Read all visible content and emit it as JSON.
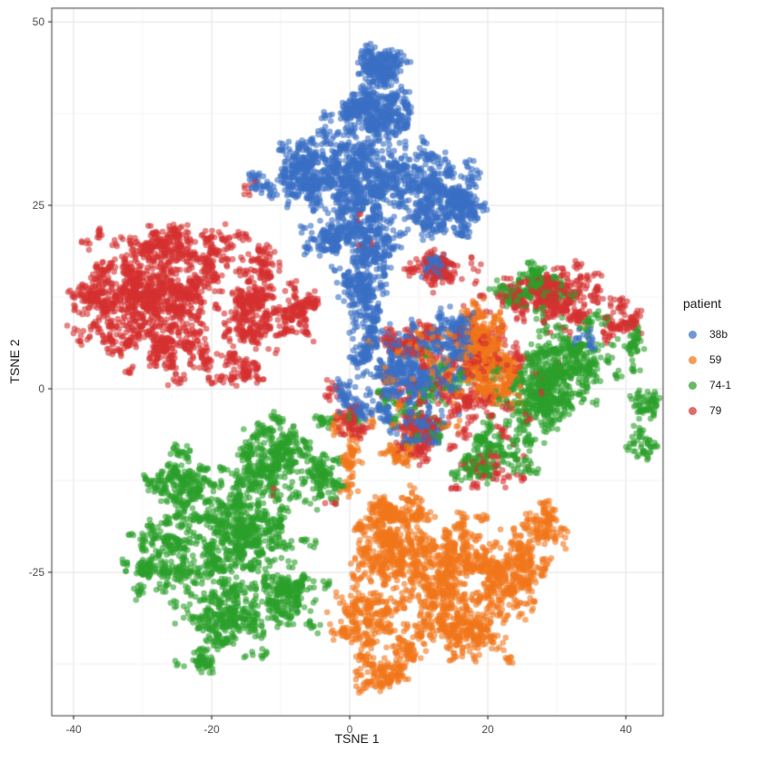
{
  "chart_data": {
    "type": "scatter",
    "title": "",
    "xlabel": "TSNE 1",
    "ylabel": "TSNE 2",
    "x_ticks": [
      -40,
      -20,
      0,
      20,
      40
    ],
    "y_ticks": [
      -25,
      0,
      25,
      50
    ],
    "x_minor_ticks": [
      -30,
      -10,
      10,
      30
    ],
    "y_minor_ticks": [
      -37.5,
      -12.5,
      12.5,
      37.5
    ],
    "xlim": [
      -43.16,
      45.39
    ],
    "ylim": [
      -44.55,
      51.86
    ],
    "grid": true,
    "legend_title": "patient",
    "legend_position": "right",
    "point_radius": 3.3,
    "point_alpha": 0.6,
    "colors": {
      "major_grid": "#e9e9e9",
      "minor_grid": "#f4f4f4",
      "panel_border": "#595959",
      "tick_mark": "#333333",
      "axis_text": "#4d4d4d"
    },
    "series": [
      {
        "name": "38b",
        "color": "#3b6fc4",
        "blobs": [
          [
            4.5,
            44,
            3.5,
            3,
            280
          ],
          [
            3,
            37.5,
            5.5,
            3.5,
            450
          ],
          [
            1,
            28.5,
            9,
            6.5,
            1000
          ],
          [
            -6.5,
            30,
            3,
            4.5,
            250
          ],
          [
            13,
            26,
            5,
            5,
            450
          ],
          [
            16.5,
            25,
            2.5,
            3.5,
            150
          ],
          [
            1,
            20,
            6.5,
            4,
            400
          ],
          [
            1.5,
            14,
            3,
            3,
            200
          ],
          [
            2.5,
            9,
            1.8,
            2.5,
            90
          ],
          [
            2,
            4.5,
            1.5,
            2,
            50
          ],
          [
            12.5,
            16.3,
            2,
            1.4,
            70
          ],
          [
            -12.9,
            28,
            2,
            1.3,
            45
          ],
          [
            9,
            2.5,
            7,
            6.5,
            600
          ],
          [
            15,
            7,
            4,
            3,
            200
          ],
          [
            11,
            -5.5,
            4,
            2.5,
            140
          ],
          [
            34,
            7,
            1.5,
            1.5,
            25
          ],
          [
            -0.9,
            -1,
            0.7,
            2,
            45
          ],
          [
            2,
            -3.5,
            1.2,
            1.2,
            30
          ]
        ]
      },
      {
        "name": "59",
        "color": "#f2761b",
        "blobs": [
          [
            12,
            -25,
            9,
            6.5,
            800
          ],
          [
            4.5,
            -21,
            5,
            5,
            300
          ],
          [
            24,
            -25,
            6,
            5.5,
            400
          ],
          [
            2,
            -32,
            4.5,
            4.5,
            250
          ],
          [
            17,
            -33,
            6,
            4,
            300
          ],
          [
            7.5,
            -16.5,
            3,
            2.5,
            150
          ],
          [
            4,
            -39,
            3,
            2.2,
            120
          ],
          [
            28,
            -18.5,
            3,
            2.5,
            100
          ],
          [
            9,
            -36,
            4,
            2.5,
            100
          ],
          [
            19,
            7,
            3.5,
            4,
            300
          ],
          [
            21,
            1.5,
            3.5,
            4,
            250
          ],
          [
            12,
            2,
            8,
            7,
            220
          ],
          [
            8,
            -9,
            3,
            2,
            60
          ],
          [
            0.3,
            -10,
            1.2,
            3.2,
            70
          ],
          [
            -2,
            -4.5,
            1.2,
            1,
            18
          ]
        ]
      },
      {
        "name": "74-1",
        "color": "#2ca02c",
        "blobs": [
          [
            -16,
            -20,
            9,
            8,
            900
          ],
          [
            -11.5,
            -9,
            5.5,
            4.5,
            400
          ],
          [
            -24,
            -13,
            5,
            4,
            250
          ],
          [
            -27,
            -24,
            5,
            5,
            300
          ],
          [
            -17,
            -31,
            7,
            4.5,
            350
          ],
          [
            -8,
            -29,
            4,
            4,
            200
          ],
          [
            -3.5,
            -12,
            2.5,
            3,
            140
          ],
          [
            -21,
            -37,
            3,
            1.5,
            60
          ],
          [
            27,
            -1,
            6,
            5,
            500
          ],
          [
            32,
            4,
            6,
            5,
            400
          ],
          [
            27,
            14,
            5,
            3,
            250
          ],
          [
            20,
            -9,
            6,
            3,
            220
          ],
          [
            12,
            0,
            6,
            6,
            120
          ],
          [
            43,
            -2,
            2,
            3,
            70
          ],
          [
            42,
            -8,
            2,
            2,
            50
          ],
          [
            41,
            6,
            1.5,
            3,
            50
          ],
          [
            -4,
            -3.8,
            1.5,
            0.8,
            22
          ],
          [
            1.5,
            -4.5,
            1,
            1,
            12
          ],
          [
            6,
            -1.5,
            1,
            1.5,
            15
          ]
        ]
      },
      {
        "name": "79",
        "color": "#d63131",
        "blobs": [
          [
            -28,
            13,
            9,
            7,
            900
          ],
          [
            -23,
            19,
            8,
            3.5,
            300
          ],
          [
            -36,
            11,
            4,
            5,
            250
          ],
          [
            -14,
            11,
            5,
            5.5,
            350
          ],
          [
            -25,
            5,
            7,
            3.5,
            250
          ],
          [
            -8,
            10.5,
            2.5,
            3,
            120
          ],
          [
            -6,
            12,
            1.5,
            1.5,
            40
          ],
          [
            -15,
            2.5,
            3,
            2,
            80
          ],
          [
            -13,
            17.5,
            2.5,
            2,
            60
          ],
          [
            29,
            13,
            6,
            4.5,
            450
          ],
          [
            13,
            16,
            6,
            2.5,
            150
          ],
          [
            18,
            2,
            12,
            9,
            450
          ],
          [
            8,
            6.5,
            3,
            2.5,
            120
          ],
          [
            10,
            -6.5,
            3.5,
            2.5,
            150
          ],
          [
            20,
            -11,
            5,
            2,
            80
          ],
          [
            38,
            9,
            3,
            3,
            70
          ],
          [
            41,
            9.5,
            1.2,
            1.5,
            30
          ],
          [
            0.7,
            -4.5,
            2.2,
            1.8,
            90
          ],
          [
            -2,
            0,
            1,
            1,
            15
          ],
          [
            2,
            19,
            7,
            5,
            10
          ],
          [
            -14.7,
            27.3,
            0.8,
            0.6,
            7
          ],
          [
            -2.6,
            -15.5,
            0.6,
            0.6,
            5
          ],
          [
            -11,
            -14.5,
            0.4,
            0.4,
            3
          ]
        ]
      }
    ]
  }
}
